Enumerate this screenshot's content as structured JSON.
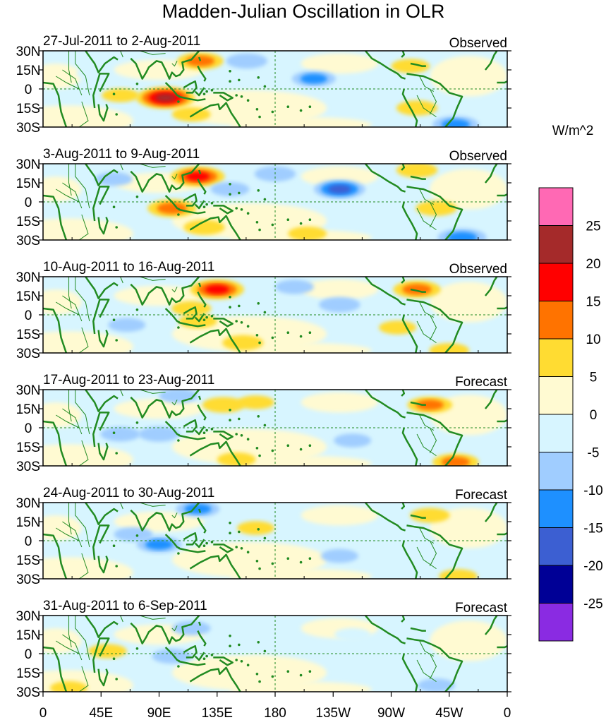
{
  "chart_data": {
    "type": "heatmap",
    "title": "Madden-Julian Oscillation in OLR",
    "units_label": "W/m^2",
    "x_ticks": [
      "0",
      "45E",
      "90E",
      "135E",
      "180",
      "135W",
      "90W",
      "45W",
      "0"
    ],
    "y_ticks": [
      "30N",
      "15N",
      "0",
      "15S",
      "30S"
    ],
    "lat_range": [
      -30,
      30
    ],
    "lon_range": [
      0,
      360
    ],
    "colorbar": {
      "tick_labels": [
        "25",
        "20",
        "15",
        "10",
        "5",
        "0",
        "-5",
        "-10",
        "-15",
        "-20",
        "-25"
      ],
      "levels": [
        -30,
        -25,
        -20,
        -15,
        -10,
        -5,
        0,
        5,
        10,
        15,
        20,
        25,
        30
      ],
      "colors": [
        "#8a2be2",
        "#000096",
        "#3c5fd2",
        "#1e90ff",
        "#a0cdff",
        "#d7f5ff",
        "#fffad2",
        "#ffdc32",
        "#ff7300",
        "#ff0000",
        "#a52a2a",
        "#ff69b4"
      ]
    },
    "panels": [
      {
        "period": "27-Jul-2011 to 2-Aug-2011",
        "kind": "Observed",
        "anomalies": [
          {
            "lon": 95,
            "lat": -7,
            "value": 22
          },
          {
            "lon": 122,
            "lat": 22,
            "value": 12
          },
          {
            "lon": 115,
            "lat": -20,
            "value": 6
          },
          {
            "lon": 158,
            "lat": 22,
            "value": -8
          },
          {
            "lon": 210,
            "lat": 8,
            "value": -10
          },
          {
            "lon": 60,
            "lat": -5,
            "value": 5
          },
          {
            "lon": 290,
            "lat": -15,
            "value": 8
          },
          {
            "lon": 285,
            "lat": 18,
            "value": 6
          },
          {
            "lon": 320,
            "lat": -28,
            "value": -12
          },
          {
            "lon": 40,
            "lat": 12,
            "value": -4
          }
        ]
      },
      {
        "period": "3-Aug-2011 to 9-Aug-2011",
        "kind": "Observed",
        "anomalies": [
          {
            "lon": 100,
            "lat": -5,
            "value": 14
          },
          {
            "lon": 120,
            "lat": 20,
            "value": 18
          },
          {
            "lon": 230,
            "lat": 10,
            "value": -16
          },
          {
            "lon": 180,
            "lat": 22,
            "value": -8
          },
          {
            "lon": 145,
            "lat": 10,
            "value": -6
          },
          {
            "lon": 125,
            "lat": -20,
            "value": 8
          },
          {
            "lon": 290,
            "lat": 25,
            "value": 8
          },
          {
            "lon": 305,
            "lat": -5,
            "value": 8
          },
          {
            "lon": 325,
            "lat": -28,
            "value": -14
          },
          {
            "lon": 205,
            "lat": -25,
            "value": 6
          },
          {
            "lon": 55,
            "lat": 18,
            "value": -5
          }
        ]
      },
      {
        "period": "10-Aug-2011 to 16-Aug-2011",
        "kind": "Observed",
        "anomalies": [
          {
            "lon": 135,
            "lat": 20,
            "value": 18
          },
          {
            "lon": 115,
            "lat": 5,
            "value": 7
          },
          {
            "lon": 120,
            "lat": -5,
            "value": 6
          },
          {
            "lon": 155,
            "lat": -22,
            "value": 8
          },
          {
            "lon": 230,
            "lat": 8,
            "value": -8
          },
          {
            "lon": 195,
            "lat": 22,
            "value": -6
          },
          {
            "lon": 290,
            "lat": 20,
            "value": 13
          },
          {
            "lon": 315,
            "lat": -28,
            "value": 7
          },
          {
            "lon": 65,
            "lat": -8,
            "value": -5
          },
          {
            "lon": 275,
            "lat": -10,
            "value": 5
          }
        ]
      },
      {
        "period": "17-Aug-2011 to 23-Aug-2011",
        "kind": "Forecast",
        "anomalies": [
          {
            "lon": 140,
            "lat": 18,
            "value": 9
          },
          {
            "lon": 165,
            "lat": 20,
            "value": 5
          },
          {
            "lon": 60,
            "lat": -5,
            "value": -7
          },
          {
            "lon": 90,
            "lat": -5,
            "value": -8
          },
          {
            "lon": 105,
            "lat": 25,
            "value": -6
          },
          {
            "lon": 300,
            "lat": 18,
            "value": 11
          },
          {
            "lon": 320,
            "lat": -27,
            "value": 12
          },
          {
            "lon": 240,
            "lat": -10,
            "value": -5
          },
          {
            "lon": 150,
            "lat": -25,
            "value": 6
          }
        ]
      },
      {
        "period": "24-Aug-2011 to 30-Aug-2011",
        "kind": "Forecast",
        "anomalies": [
          {
            "lon": 90,
            "lat": -3,
            "value": -11
          },
          {
            "lon": 120,
            "lat": 25,
            "value": -10
          },
          {
            "lon": 70,
            "lat": 5,
            "value": -6
          },
          {
            "lon": 165,
            "lat": 10,
            "value": 5
          },
          {
            "lon": 300,
            "lat": 20,
            "value": 7
          },
          {
            "lon": 230,
            "lat": -12,
            "value": -5
          },
          {
            "lon": 40,
            "lat": 25,
            "value": -4
          },
          {
            "lon": 322,
            "lat": -28,
            "value": 6
          }
        ]
      },
      {
        "period": "31-Aug-2011 to 6-Sep-2011",
        "kind": "Forecast",
        "anomalies": [
          {
            "lon": 50,
            "lat": 2,
            "value": 6
          },
          {
            "lon": 100,
            "lat": -2,
            "value": -7
          },
          {
            "lon": 115,
            "lat": 20,
            "value": -6
          },
          {
            "lon": 150,
            "lat": 5,
            "value": -4
          },
          {
            "lon": 305,
            "lat": -25,
            "value": -5
          },
          {
            "lon": 240,
            "lat": 15,
            "value": -4
          },
          {
            "lon": 20,
            "lat": -27,
            "value": 5
          }
        ]
      }
    ]
  }
}
